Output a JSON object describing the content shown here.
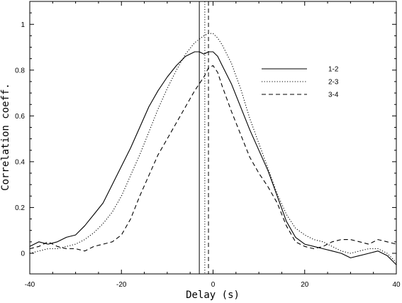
{
  "chart_data": {
    "type": "line",
    "title": "",
    "xlabel": "Delay (s)",
    "ylabel": "Correlation coeff.",
    "xlim": [
      -40,
      40
    ],
    "ylim": [
      -0.09,
      1.1
    ],
    "xticks": [
      -40,
      -20,
      0,
      20,
      40
    ],
    "xtick_labels": [
      "-40",
      "-20",
      "0",
      "20",
      "40"
    ],
    "yticks": [
      0,
      0.2,
      0.4,
      0.6,
      0.8,
      1
    ],
    "ytick_labels": [
      "0",
      "0.2",
      "0.4",
      "0.6",
      "0.8",
      "1"
    ],
    "grid": false,
    "legend_position": "upper-right",
    "vertical_lines": [
      {
        "x": -3.0,
        "style": "solid"
      },
      {
        "x": -1.8,
        "style": "dotted"
      },
      {
        "x": -1.0,
        "style": "dashed"
      }
    ],
    "series": [
      {
        "name": "1-2",
        "style": "solid",
        "x": [
          -40,
          -38,
          -36,
          -34,
          -32,
          -30,
          -28,
          -26,
          -24,
          -22,
          -20,
          -18,
          -16,
          -14,
          -12,
          -10,
          -8,
          -6,
          -4,
          -3,
          -2,
          -1,
          0,
          1,
          2,
          4,
          6,
          8,
          10,
          12,
          14,
          16,
          18,
          20,
          22,
          24,
          26,
          28,
          30,
          32,
          34,
          36,
          38,
          40
        ],
        "y": [
          0.03,
          0.05,
          0.04,
          0.05,
          0.07,
          0.08,
          0.12,
          0.17,
          0.22,
          0.3,
          0.38,
          0.46,
          0.55,
          0.64,
          0.71,
          0.77,
          0.82,
          0.86,
          0.88,
          0.88,
          0.87,
          0.88,
          0.88,
          0.86,
          0.82,
          0.74,
          0.64,
          0.54,
          0.45,
          0.36,
          0.25,
          0.14,
          0.07,
          0.04,
          0.03,
          0.02,
          0.01,
          0.0,
          -0.02,
          -0.01,
          0.0,
          0.01,
          -0.01,
          -0.05
        ]
      },
      {
        "name": "2-3",
        "style": "dotted",
        "x": [
          -40,
          -38,
          -36,
          -34,
          -32,
          -30,
          -28,
          -26,
          -24,
          -22,
          -20,
          -18,
          -16,
          -14,
          -12,
          -10,
          -8,
          -6,
          -4,
          -2,
          -1,
          0,
          1,
          2,
          4,
          6,
          8,
          10,
          12,
          14,
          16,
          18,
          20,
          22,
          24,
          26,
          28,
          30,
          32,
          34,
          36,
          38,
          40
        ],
        "y": [
          0.0,
          0.01,
          0.02,
          0.02,
          0.03,
          0.04,
          0.06,
          0.09,
          0.13,
          0.18,
          0.25,
          0.34,
          0.43,
          0.53,
          0.63,
          0.72,
          0.8,
          0.87,
          0.92,
          0.95,
          0.96,
          0.96,
          0.94,
          0.91,
          0.83,
          0.72,
          0.59,
          0.48,
          0.37,
          0.26,
          0.17,
          0.11,
          0.08,
          0.06,
          0.05,
          0.03,
          0.01,
          0.0,
          0.01,
          0.02,
          0.02,
          0.0,
          -0.04
        ]
      },
      {
        "name": "3-4",
        "style": "dashed",
        "x": [
          -40,
          -38,
          -36,
          -34,
          -32,
          -30,
          -28,
          -26,
          -24,
          -22,
          -20,
          -18,
          -16,
          -14,
          -12,
          -10,
          -8,
          -6,
          -4,
          -2,
          -1,
          0,
          1,
          2,
          4,
          6,
          8,
          10,
          12,
          14,
          16,
          18,
          20,
          22,
          24,
          26,
          28,
          30,
          32,
          34,
          36,
          38,
          40
        ],
        "y": [
          0.02,
          0.03,
          0.05,
          0.03,
          0.02,
          0.02,
          0.01,
          0.03,
          0.04,
          0.05,
          0.08,
          0.15,
          0.25,
          0.34,
          0.43,
          0.5,
          0.57,
          0.64,
          0.71,
          0.77,
          0.81,
          0.82,
          0.79,
          0.73,
          0.62,
          0.52,
          0.42,
          0.35,
          0.29,
          0.22,
          0.12,
          0.05,
          0.03,
          0.02,
          0.03,
          0.05,
          0.06,
          0.06,
          0.05,
          0.04,
          0.06,
          0.05,
          0.04
        ]
      }
    ]
  }
}
